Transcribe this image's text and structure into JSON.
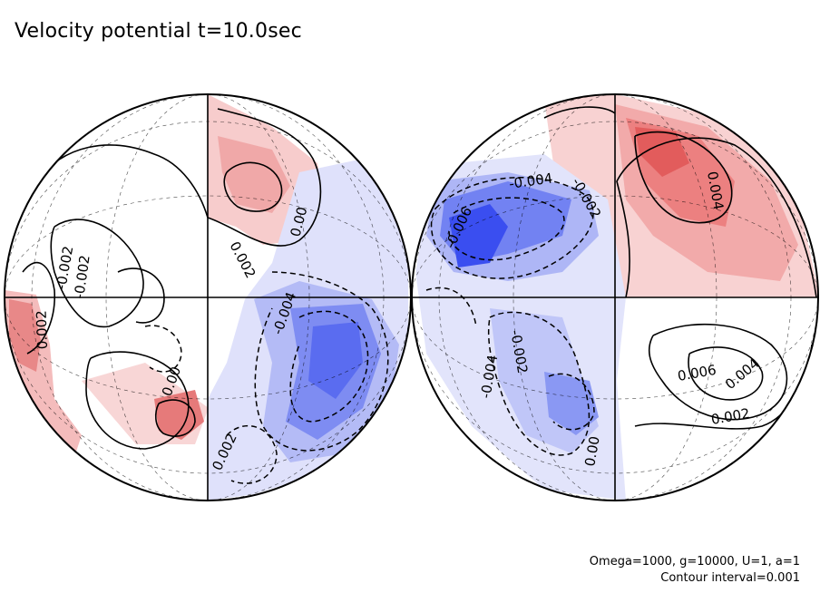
{
  "figure": {
    "title": "Velocity potential t=10.0sec",
    "footer_line1": "Omega=1000, g=10000, U=1, a=1",
    "footer_line2": "Contour interval=0.001"
  },
  "colors": {
    "positive": "#e65050",
    "negative": "#3c50f0",
    "contour": "#000000",
    "grid": "#000000"
  },
  "contour_labels": {
    "left": [
      "0.002",
      "0.00",
      "-0.004",
      "0.002",
      "-0.002",
      "0.00",
      "0.002",
      "-0.002"
    ],
    "right": [
      "-0.004",
      "-0.002",
      "-0.006",
      "0.004",
      "-0.002",
      "-0.004",
      "0.00",
      "0.006",
      "0.004",
      "0.002"
    ]
  }
}
